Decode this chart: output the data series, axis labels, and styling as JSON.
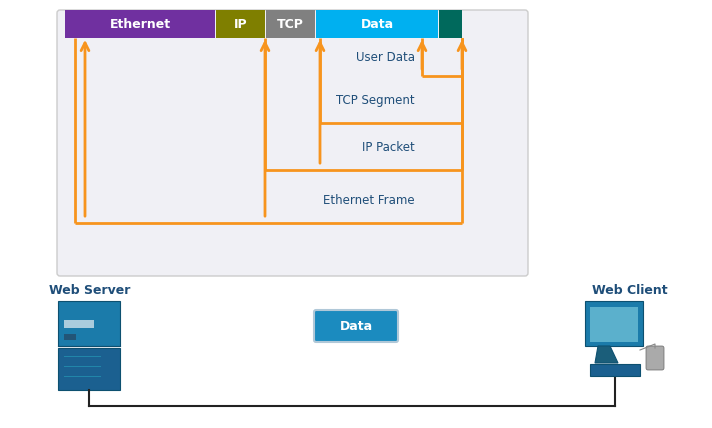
{
  "bg_color": "#ffffff",
  "orange": "#F7941D",
  "header_labels": [
    "Ethernet",
    "IP",
    "TCP",
    "Data",
    ""
  ],
  "header_colors": [
    "#7030A0",
    "#7F7F00",
    "#808080",
    "#00B0F0",
    "#00695C"
  ],
  "bracket_labels": [
    "User Data",
    "TCP Segment",
    "IP Packet",
    "Ethernet Frame"
  ],
  "label_color": "#1F4E79",
  "data_button_color": "#1B8BBF",
  "data_button_border": "#b0c8d8",
  "title_color": "#1F4E79",
  "web_server_label": "Web Server",
  "web_client_label": "Web Client",
  "server_color": "#1B6FA8",
  "client_color": "#1B6FA8"
}
